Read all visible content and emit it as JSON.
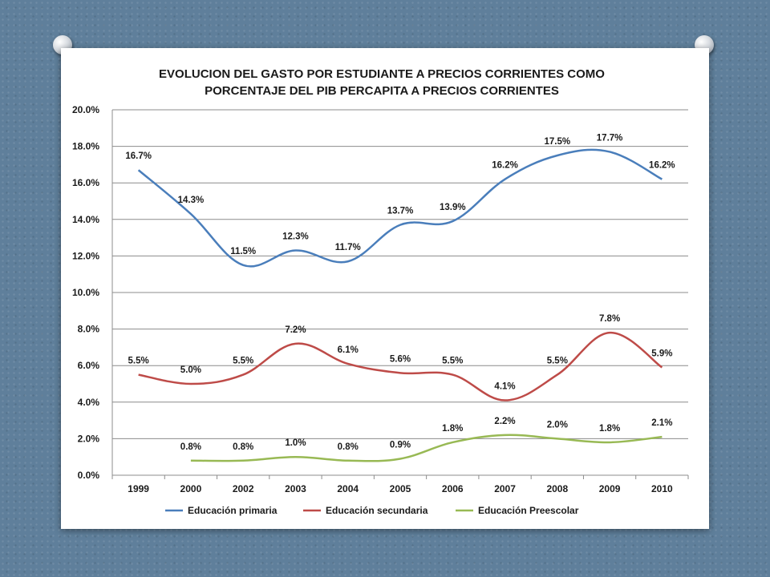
{
  "chart_data": {
    "type": "line",
    "title": "EVOLUCION DEL GASTO POR ESTUDIANTE A PRECIOS CORRIENTES COMO PORCENTAJE DEL PIB PERCAPITA A PRECIOS CORRIENTES",
    "title_lines": [
      "EVOLUCION DEL GASTO POR ESTUDIANTE A PRECIOS CORRIENTES COMO",
      "PORCENTAJE DEL PIB PERCAPITA A PRECIOS CORRIENTES"
    ],
    "categories": [
      "1999",
      "2000",
      "2002",
      "2003",
      "2004",
      "2005",
      "2006",
      "2007",
      "2008",
      "2009",
      "2010"
    ],
    "ylim": [
      0,
      20
    ],
    "yticks": [
      0,
      2,
      4,
      6,
      8,
      10,
      12,
      14,
      16,
      18,
      20
    ],
    "ytick_labels": [
      "0.0%",
      "2.0%",
      "4.0%",
      "6.0%",
      "8.0%",
      "10.0%",
      "12.0%",
      "14.0%",
      "16.0%",
      "18.0%",
      "20.0%"
    ],
    "grid": true,
    "legend_position": "bottom",
    "series": [
      {
        "name": "Educación primaria",
        "color": "#4a7ebb",
        "values": [
          16.7,
          14.3,
          11.5,
          12.3,
          11.7,
          13.7,
          13.9,
          16.2,
          17.5,
          17.7,
          16.2
        ],
        "labels": [
          "16.7%",
          "14.3%",
          "11.5%",
          "12.3%",
          "11.7%",
          "13.7%",
          "13.9%",
          "16.2%",
          "17.5%",
          "17.7%",
          "16.2%"
        ]
      },
      {
        "name": "Educación secundaria",
        "color": "#be4b48",
        "values": [
          5.5,
          5.0,
          5.5,
          7.2,
          6.1,
          5.6,
          5.5,
          4.1,
          5.5,
          7.8,
          5.9
        ],
        "labels": [
          "5.5%",
          "5.0%",
          "5.5%",
          "7.2%",
          "6.1%",
          "5.6%",
          "5.5%",
          "4.1%",
          "5.5%",
          "7.8%",
          "5.9%"
        ]
      },
      {
        "name": "Educación Preescolar",
        "color": "#98b954",
        "values": [
          null,
          0.8,
          0.8,
          1.0,
          0.8,
          0.9,
          1.8,
          2.2,
          2.0,
          1.8,
          2.1
        ],
        "labels": [
          null,
          "0.8%",
          "0.8%",
          "1.0%",
          "0.8%",
          "0.9%",
          "1.8%",
          "2.2%",
          "2.0%",
          "1.8%",
          "2.1%"
        ]
      }
    ]
  }
}
